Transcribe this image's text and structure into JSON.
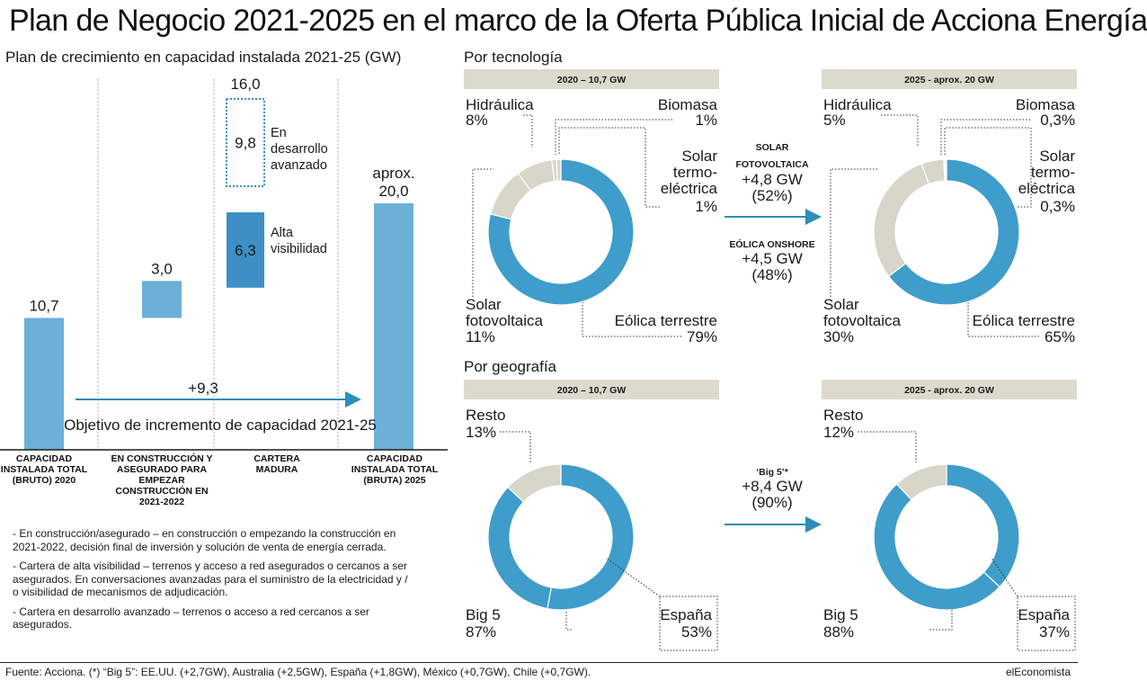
{
  "title": "Plan de Negocio 2021-2025 en el marco de la Oferta Pública Inicial de Acciona Energía",
  "colors": {
    "bar": "#6cb0d8",
    "dark_bar": "#3d8fc4",
    "donut_main": "#3f9dcb",
    "donut_other": "#d8d6c9",
    "arrow": "#2c8db8",
    "header_bg": "#dcdacd"
  },
  "chart_data": [
    {
      "type": "bar",
      "title": "Plan de crecimiento en capacidad instalada 2021-25 (GW)",
      "categories": [
        "CAPACIDAD INSTALADA TOTAL (BRUTO) 2020",
        "EN CONSTRUCCIÓN Y ASEGURADO PARA EMPEZAR CONSTRUCCIÓN EN 2021-2022",
        "CARTERA MADURA",
        "CAPACIDAD INSTALADA TOTAL (BRUTA) 2025"
      ],
      "bars": [
        {
          "category": "CAPACIDAD INSTALADA TOTAL (BRUTO) 2020",
          "base": 0,
          "value": 10.7,
          "label": "10,7"
        },
        {
          "category": "EN CONSTRUCCIÓN Y ASEGURADO PARA EMPEZAR CONSTRUCCIÓN EN 2021-2022",
          "base": 10.7,
          "value": 3.0,
          "label": "3,0"
        },
        {
          "category": "CARTERA MADURA",
          "base": 16.0,
          "value": 6.3,
          "label": "6,3",
          "segment": "Alta visibilidad"
        },
        {
          "category": "CARTERA MADURA",
          "base": 22.3,
          "value": 9.8,
          "label": "9,8",
          "segment": "En desarrollo avanzado",
          "style": "dotted"
        },
        {
          "category": "CAPACIDAD INSTALADA TOTAL (BRUTA) 2025",
          "base": 0,
          "value": 20.0,
          "label": "aprox. 20,0"
        }
      ],
      "cartera_total_label": "16,0",
      "segment_labels": {
        "high": "Alta visibilidad",
        "dev": "En desarrollo avanzado"
      },
      "arrow_value": "+9,3",
      "arrow_label": "Objetivo de incremento de capacidad 2021-25"
    },
    {
      "type": "pie",
      "title": "Por tecnología",
      "header": "2020 – 10,7 GW",
      "slices": [
        {
          "label": "Eólica terrestre",
          "value": 79,
          "text": "79%"
        },
        {
          "label": "Solar fotovoltaica",
          "value": 11,
          "text": "11%"
        },
        {
          "label": "Hidráulica",
          "value": 8,
          "text": "8%"
        },
        {
          "label": "Biomasa",
          "value": 1,
          "text": "1%"
        },
        {
          "label": "Solar termo-eléctrica",
          "value": 1,
          "text": "1%"
        }
      ]
    },
    {
      "type": "pie",
      "title": "",
      "header": "2025 - aprox. 20 GW",
      "slices": [
        {
          "label": "Eólica terrestre",
          "value": 65,
          "text": "65%"
        },
        {
          "label": "Solar fotovoltaica",
          "value": 30,
          "text": "30%"
        },
        {
          "label": "Hidráulica",
          "value": 5,
          "text": "5%"
        },
        {
          "label": "Biomasa",
          "value": 0.3,
          "text": "0,3%"
        },
        {
          "label": "Solar termo-eléctrica",
          "value": 0.3,
          "text": "0,3%"
        }
      ]
    },
    {
      "type": "pie",
      "title": "Por geografía",
      "header": "2020 – 10,7 GW",
      "slices": [
        {
          "label": "España",
          "value": 53,
          "text": "53%",
          "group": "Big 5"
        },
        {
          "label": "Big 5 (resto)",
          "value": 34,
          "group": "Big 5"
        },
        {
          "label": "Resto",
          "value": 13,
          "text": "13%"
        }
      ],
      "totals": [
        {
          "label": "Big 5",
          "text": "87%"
        }
      ]
    },
    {
      "type": "pie",
      "title": "",
      "header": "2025 - aprox. 20 GW",
      "slices": [
        {
          "label": "España",
          "value": 37,
          "text": "37%",
          "group": "Big 5"
        },
        {
          "label": "Big 5 (resto)",
          "value": 51,
          "group": "Big 5"
        },
        {
          "label": "Resto",
          "value": 12,
          "text": "12%"
        }
      ],
      "totals": [
        {
          "label": "Big 5",
          "text": "88%"
        }
      ]
    }
  ],
  "tech_arrow": {
    "solar_title": "SOLAR FOTOVOLTAICA",
    "solar_gw": "+4,8 GW",
    "solar_pct": "(52%)",
    "wind_title": "EÓLICA ONSHORE",
    "wind_gw": "+4,5 GW",
    "wind_pct": "(48%)"
  },
  "geo_arrow": {
    "title": "‘Big 5’*",
    "gw": "+8,4 GW",
    "pct": "(90%)"
  },
  "notes": [
    "- En construcción/asegurado – en construcción o empezando la construcción en 2021-2022, decisión final de inversión y solución de venta de energía cerrada.",
    "- Cartera de alta visibilidad – terrenos y acceso a red asegurados o cercanos a ser asegurados. En conversaciones avanzadas para el suministro de la electricidad y / o visibilidad de mecanismos de adjudicación.",
    "- Cartera en desarrollo avanzado – terrenos o acceso a red cercanos a ser asegurados."
  ],
  "footer": "Fuente: Acciona. (*) “Big 5”: EE.UU. (+2,7GW), Australia (+2,5GW), España (+1,8GW), México (+0,7GW), Chile (+0,7GW).",
  "brand": "elEconomista"
}
